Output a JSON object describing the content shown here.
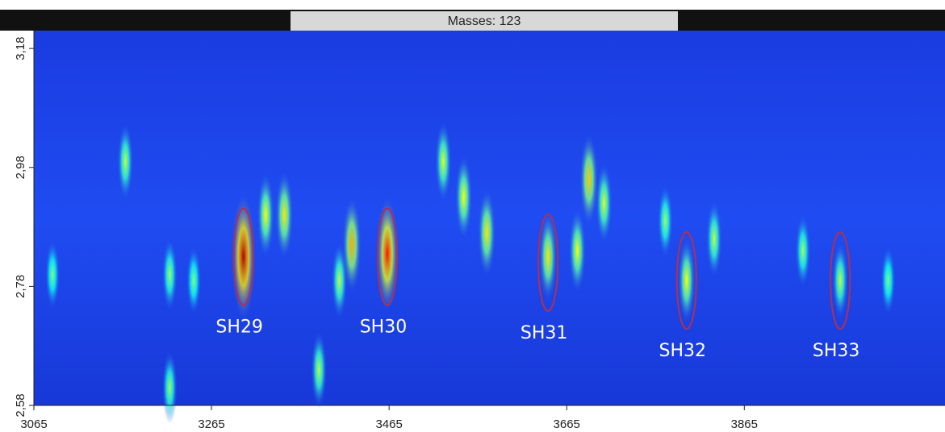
{
  "chart_data": {
    "type": "heatmap",
    "title": "Masses: 123",
    "xlim": [
      3065,
      4091
    ],
    "ylim": [
      2.58,
      3.21
    ],
    "xticks": [
      3065,
      3265,
      3465,
      3665,
      3865
    ],
    "yticks": [
      {
        "value": 2.58,
        "label": "2,58"
      },
      {
        "value": 2.78,
        "label": "2,78"
      },
      {
        "value": 2.98,
        "label": "2,98"
      },
      {
        "value": 3.18,
        "label": "3,18"
      }
    ],
    "peaks": {
      "x": [
        3301,
        3463,
        3423,
        3347,
        3644,
        3690,
        3575,
        3549,
        3526,
        3800,
        3973,
        3168,
        3677,
        3707,
        3831,
        3776,
        3409,
        3218,
        3086,
        3245,
        3386,
        3218,
        4027,
        3931,
        3326
      ],
      "y": [
        2.83,
        2.835,
        2.85,
        2.9,
        2.83,
        2.96,
        2.87,
        2.93,
        2.99,
        2.79,
        2.79,
        2.99,
        2.84,
        2.92,
        2.86,
        2.89,
        2.79,
        2.8,
        2.8,
        2.79,
        2.64,
        2.61,
        2.79,
        2.84,
        2.9
      ],
      "values": [
        1.0,
        0.85,
        0.6,
        0.5,
        0.5,
        0.55,
        0.5,
        0.45,
        0.4,
        0.45,
        0.35,
        0.35,
        0.45,
        0.4,
        0.35,
        0.3,
        0.35,
        0.3,
        0.25,
        0.25,
        0.35,
        0.3,
        0.25,
        0.3,
        0.45
      ]
    },
    "annotations": [
      {
        "label": "SH29",
        "x": 3301,
        "y": 2.83
      },
      {
        "label": "SH30",
        "x": 3463,
        "y": 2.83
      },
      {
        "label": "SH31",
        "x": 3644,
        "y": 2.82
      },
      {
        "label": "SH32",
        "x": 3800,
        "y": 2.79
      },
      {
        "label": "SH33",
        "x": 3973,
        "y": 2.79
      }
    ]
  }
}
